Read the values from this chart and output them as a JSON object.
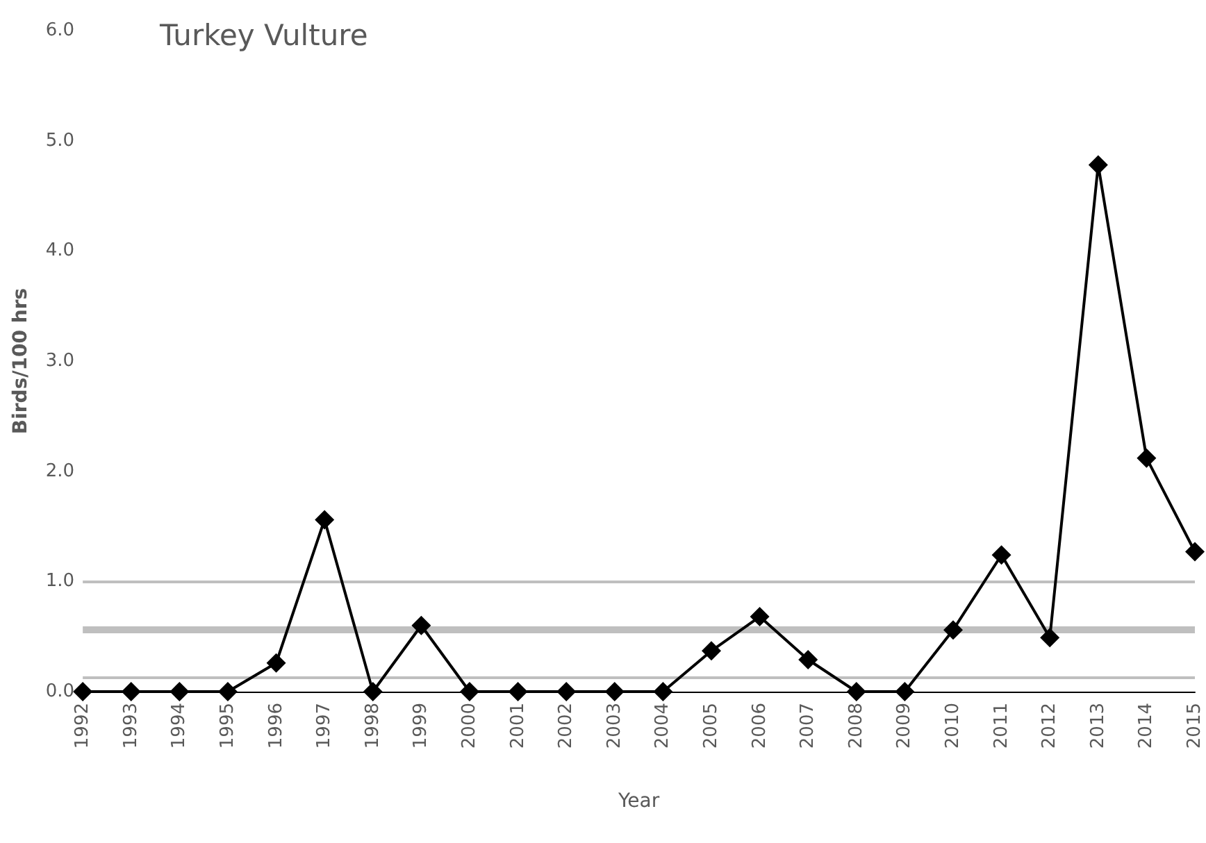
{
  "chart_data": {
    "type": "line",
    "title": "Turkey Vulture",
    "xlabel": "Year",
    "ylabel": "Birds/100 hrs",
    "categories": [
      "1992",
      "1993",
      "1994",
      "1995",
      "1996",
      "1997",
      "1998",
      "1999",
      "2000",
      "2001",
      "2002",
      "2003",
      "2004",
      "2005",
      "2006",
      "2007",
      "2008",
      "2009",
      "2010",
      "2011",
      "2012",
      "2013",
      "2014",
      "2015"
    ],
    "series": [
      {
        "color": "#000000",
        "values": [
          0,
          0,
          0,
          0,
          0.26,
          1.56,
          0,
          0.6,
          0,
          0,
          0,
          0,
          0,
          0.37,
          0.68,
          0.29,
          0,
          0,
          0.56,
          1.24,
          0.49,
          4.78,
          2.12,
          1.27
        ]
      }
    ],
    "ylim": [
      0,
      6
    ],
    "yticks": [
      {
        "value": 0,
        "label": "0.0"
      },
      {
        "value": 1,
        "label": "1.0"
      },
      {
        "value": 2,
        "label": "2.0"
      },
      {
        "value": 3,
        "label": "3.0"
      },
      {
        "value": 4,
        "label": "4.0"
      },
      {
        "value": 5,
        "label": "5.0"
      },
      {
        "value": 6,
        "label": "6.0"
      }
    ],
    "ref_lines": [
      {
        "axis": "y",
        "value": 1.0,
        "color": "#bfbfbf"
      },
      {
        "axis": "y",
        "value": 0.56,
        "color": "#bfbfbf"
      },
      {
        "axis": "y",
        "value": 0.13,
        "color": "#bfbfbf"
      }
    ],
    "grid": false,
    "marker": "diamond",
    "line_style": "solid"
  }
}
